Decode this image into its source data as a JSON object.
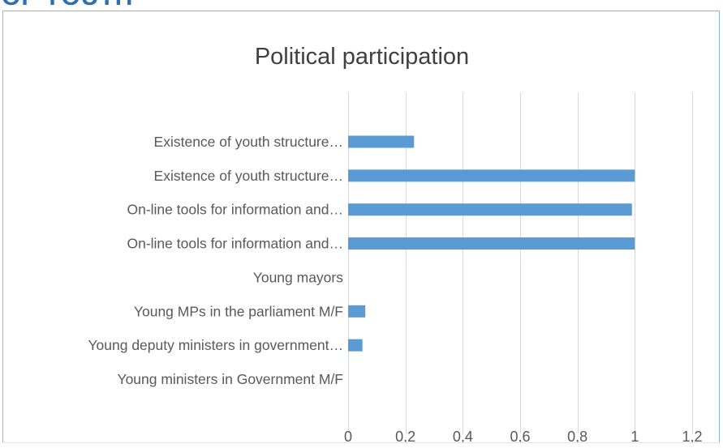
{
  "page": {
    "header_fragment": "OF YOUTH"
  },
  "chart_data": {
    "type": "bar",
    "orientation": "horizontal",
    "title": "Political participation",
    "categories": [
      "Existence of youth structure…",
      "Existence of youth structure…",
      "On-line tools for information and…",
      "On-line tools for information and…",
      "Young mayors",
      "Young MPs in the parliament M/F",
      "Young deputy ministers in government…",
      "Young ministers in Government M/F"
    ],
    "values": [
      0.23,
      1.0,
      0.99,
      1.0,
      0,
      0.06,
      0.05,
      0
    ],
    "xlim": [
      0,
      1.2
    ],
    "xticks": [
      "0",
      "0,2",
      "0,4",
      "0,6",
      "0,8",
      "1",
      "1,2"
    ],
    "xtick_values": [
      0,
      0.2,
      0.4,
      0.6,
      0.8,
      1.0,
      1.2
    ],
    "grid": "vertical",
    "legend": "none",
    "bar_color": "#5b9bd5",
    "grid_color": "#d9d9d9",
    "text_color": "#595959"
  }
}
